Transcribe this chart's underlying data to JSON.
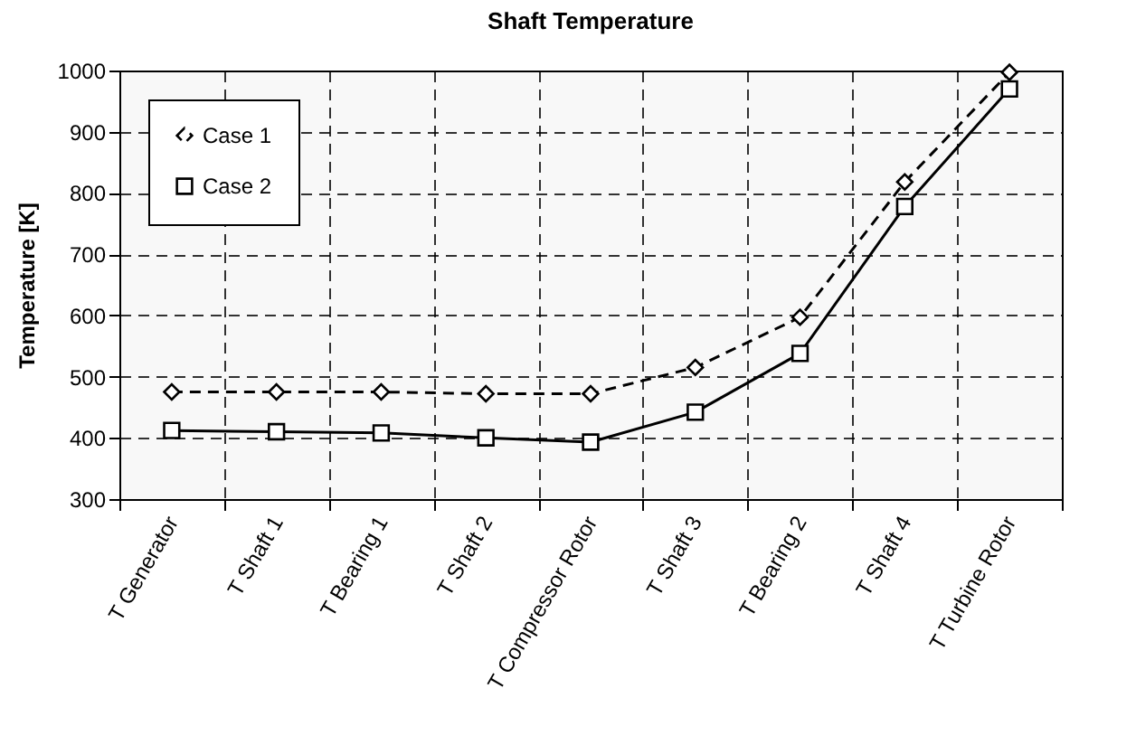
{
  "chart_data": {
    "type": "line",
    "title": "Shaft Temperature",
    "ylabel": "Temperature [K]",
    "categories": [
      "T Generator",
      "T Shaft 1",
      "T Bearing 1",
      "T Shaft 2",
      "T Compressor Rotor",
      "T Shaft 3",
      "T Bearing 2",
      "T Shaft 4",
      "T Turbine Rotor"
    ],
    "series": [
      {
        "name": "Case 1",
        "color": "#000000",
        "marker": "diamond",
        "line_style": "dashed",
        "values": [
          475,
          475,
          475,
          472,
          472,
          515,
          597,
          818,
          997
        ]
      },
      {
        "name": "Case 2",
        "color": "#000000",
        "marker": "square",
        "line_style": "solid",
        "values": [
          412,
          410,
          408,
          400,
          393,
          442,
          538,
          778,
          970
        ]
      }
    ],
    "ylim": [
      300,
      1000
    ],
    "yticks": [
      300,
      400,
      500,
      600,
      700,
      800,
      900,
      1000
    ],
    "grid": true,
    "legend": "top left"
  }
}
